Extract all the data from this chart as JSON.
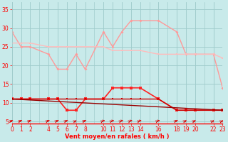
{
  "bg_color": "#c8eaea",
  "grid_color": "#a0cccc",
  "xlim": [
    0,
    23
  ],
  "ylim": [
    4.5,
    37
  ],
  "yticks": [
    5,
    10,
    15,
    20,
    25,
    30,
    35
  ],
  "xtick_positions": [
    0,
    1,
    2,
    4,
    5,
    6,
    7,
    8,
    10,
    11,
    12,
    13,
    14,
    16,
    18,
    19,
    20,
    22,
    23
  ],
  "xtick_labels": [
    "0",
    "1",
    "2",
    "4",
    "5",
    "6",
    "7",
    "8",
    "10",
    "11",
    "12",
    "13",
    "14",
    "16",
    "18",
    "19",
    "20",
    "22",
    "23"
  ],
  "xlabel": "Vent moyen/en rafales ( km/h )",
  "series": [
    {
      "name": "rafales_max",
      "x": [
        0,
        1,
        2,
        4,
        5,
        6,
        7,
        8,
        10,
        11,
        12,
        13,
        14,
        16,
        18,
        19,
        20,
        22,
        23
      ],
      "y": [
        29,
        25,
        25,
        23,
        19,
        19,
        23,
        19,
        29,
        25,
        29,
        32,
        32,
        32,
        29,
        23,
        23,
        23,
        14
      ],
      "color": "#ff9999",
      "lw": 1.0,
      "marker": "D",
      "ms": 2.0,
      "zorder": 2
    },
    {
      "name": "vent_max",
      "x": [
        0,
        1,
        2,
        4,
        5,
        6,
        7,
        8,
        10,
        11,
        12,
        13,
        14,
        16,
        18,
        19,
        20,
        22,
        23
      ],
      "y": [
        26,
        26,
        26,
        25,
        25,
        25,
        25,
        25,
        25,
        24,
        24,
        24,
        24,
        23,
        23,
        23,
        23,
        23,
        22
      ],
      "color": "#ffbbbb",
      "lw": 1.0,
      "marker": "s",
      "ms": 2.0,
      "zorder": 2
    },
    {
      "name": "rafales_inst",
      "x": [
        0,
        1,
        2,
        4,
        5,
        6,
        7,
        8,
        10,
        11,
        12,
        13,
        14,
        16,
        18,
        19,
        20,
        22,
        23
      ],
      "y": [
        11,
        11,
        11,
        11,
        11,
        8,
        8,
        11,
        11,
        14,
        14,
        14,
        14,
        11,
        8,
        8,
        8,
        8,
        8
      ],
      "color": "#ff2222",
      "lw": 1.2,
      "marker": "s",
      "ms": 2.5,
      "zorder": 3
    },
    {
      "name": "vent_moy1",
      "x": [
        0,
        1,
        2,
        4,
        5,
        6,
        7,
        8,
        10,
        11,
        12,
        13,
        14,
        16,
        18,
        19,
        20,
        22,
        23
      ],
      "y": [
        11,
        11,
        11,
        11,
        11,
        11,
        11,
        11,
        11,
        11,
        11,
        11,
        11,
        11,
        8,
        8,
        8,
        8,
        8
      ],
      "color": "#cc0000",
      "lw": 1.0,
      "marker": "s",
      "ms": 2.0,
      "zorder": 3
    },
    {
      "name": "vent_moy2",
      "x": [
        0,
        23
      ],
      "y": [
        11,
        8
      ],
      "color": "#990000",
      "lw": 1.0,
      "marker": "s",
      "ms": 2.0,
      "zorder": 3
    }
  ],
  "arrows": {
    "x": [
      0,
      1,
      2,
      4,
      5,
      6,
      7,
      8,
      10,
      11,
      12,
      13,
      14,
      16,
      18,
      19,
      20,
      22,
      23
    ],
    "angles_deg": [
      45,
      45,
      45,
      45,
      45,
      45,
      70,
      45,
      10,
      10,
      10,
      10,
      10,
      10,
      45,
      60,
      60,
      70,
      70
    ],
    "y": 5.2,
    "color": "#dd0000",
    "size": 5
  },
  "axis_fontsize": 6,
  "tick_fontsize": 5.5
}
